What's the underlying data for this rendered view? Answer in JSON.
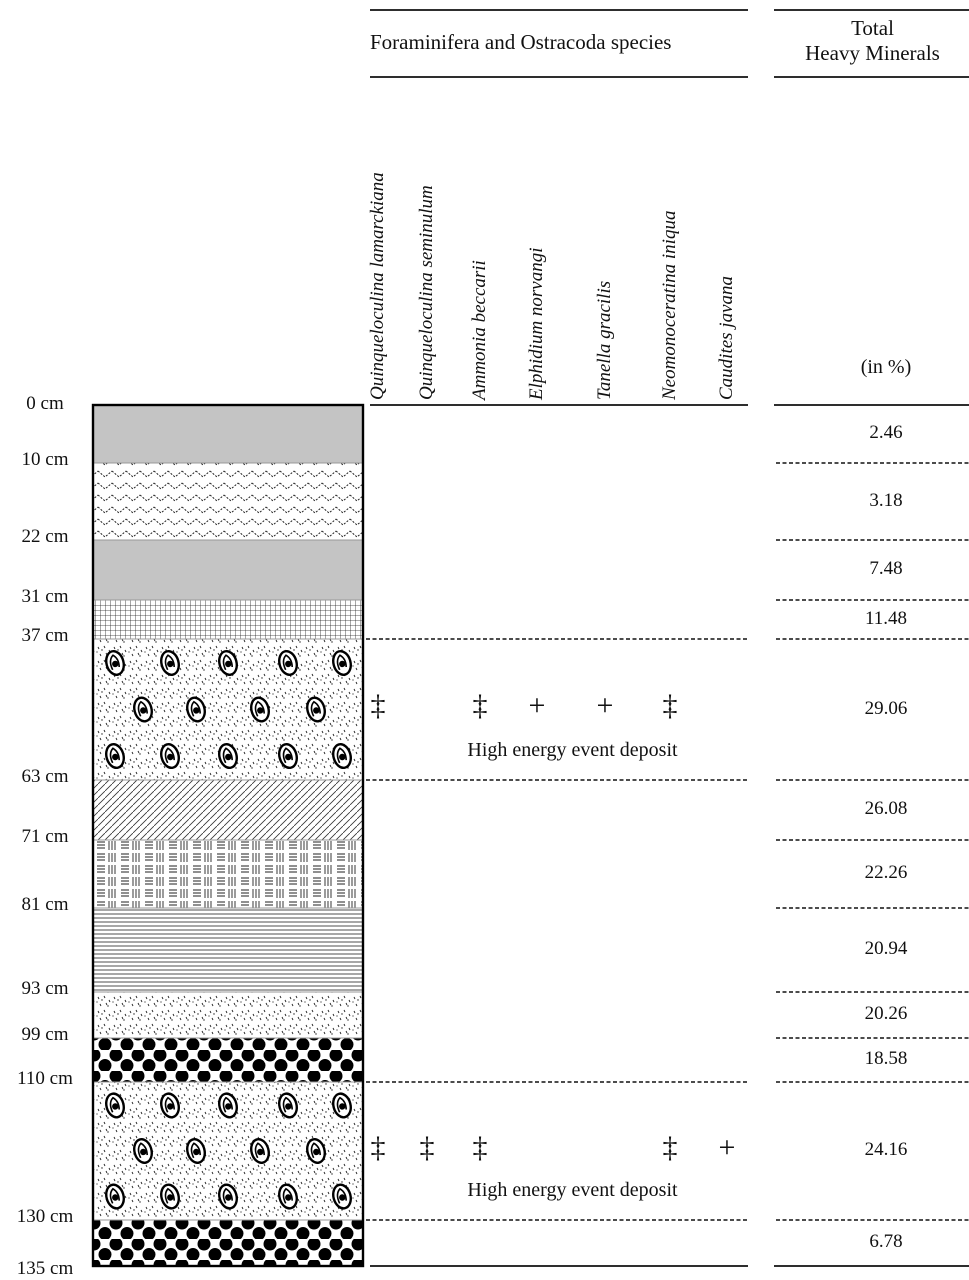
{
  "header": {
    "species_group": "Foraminifera and Ostracoda species",
    "total_line1": "Total",
    "total_line2": "Heavy Minerals",
    "unit": "(in %)"
  },
  "species": [
    "Quinqueloculina lamarckiana",
    "Quinqueloculina seminulum",
    "Ammonia beccarii",
    "Elphidium norvangi",
    "Tanella gracilis",
    "Neomonoceratina iniqua",
    "Caudites javana"
  ],
  "depth_labels": [
    "0 cm",
    "10 cm",
    "22 cm",
    "31 cm",
    "37 cm",
    "63 cm",
    "71 cm",
    "81 cm",
    "93 cm",
    "99 cm",
    "110 cm",
    "130 cm",
    "135 cm"
  ],
  "layers": [
    {
      "top": 0,
      "bottom": 10,
      "lithology": "grey-mud",
      "heavy_minerals": "2.46"
    },
    {
      "top": 10,
      "bottom": 22,
      "lithology": "chevron-pattern",
      "heavy_minerals": "3.18"
    },
    {
      "top": 22,
      "bottom": 31,
      "lithology": "grey-mud",
      "heavy_minerals": "7.48"
    },
    {
      "top": 31,
      "bottom": 37,
      "lithology": "crosshatch-grid",
      "heavy_minerals": "11.48"
    },
    {
      "top": 37,
      "bottom": 63,
      "lithology": "shelly-sand",
      "heavy_minerals": "29.06"
    },
    {
      "top": 63,
      "bottom": 71,
      "lithology": "diagonal-hatch",
      "heavy_minerals": "26.08"
    },
    {
      "top": 71,
      "bottom": 81,
      "lithology": "dash-pattern",
      "heavy_minerals": "22.26"
    },
    {
      "top": 81,
      "bottom": 93,
      "lithology": "horizontal-lines",
      "heavy_minerals": "20.94"
    },
    {
      "top": 93,
      "bottom": 99,
      "lithology": "speckled-sand",
      "heavy_minerals": "20.26"
    },
    {
      "top": 99,
      "bottom": 110,
      "lithology": "gravel-dots",
      "heavy_minerals": "18.58"
    },
    {
      "top": 110,
      "bottom": 130,
      "lithology": "shelly-sand",
      "heavy_minerals": "24.16"
    },
    {
      "top": 130,
      "bottom": 135,
      "lithology": "gravel-dots",
      "heavy_minerals": "6.78"
    }
  ],
  "events": [
    {
      "layer_top": 37,
      "label": "High energy event deposit",
      "occurrences": [
        "‡",
        "",
        "‡",
        "+",
        "+",
        "‡",
        ""
      ]
    },
    {
      "layer_top": 110,
      "label": "High energy event deposit",
      "occurrences": [
        "‡",
        "‡",
        "‡",
        "",
        "",
        "‡",
        "+"
      ]
    }
  ],
  "symbols": {
    "double_dagger": "‡",
    "plus": "+"
  },
  "colors": {
    "grey_mud": "#c4c4c4",
    "ink": "#111111"
  }
}
